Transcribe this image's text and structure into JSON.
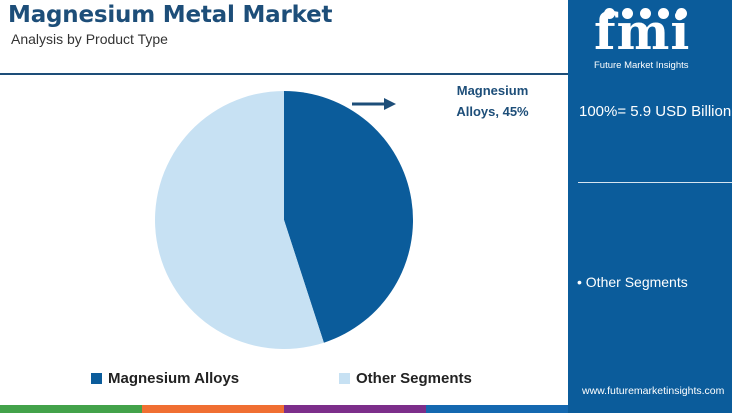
{
  "header": {
    "title": "Magnesium Metal Market",
    "subtitle": "Analysis by Product Type"
  },
  "colors": {
    "primary": "#0b5c9b",
    "light": "#c7e1f3",
    "title": "#1d4e79",
    "bottom_bar": [
      "#43a24a",
      "#f06f32",
      "#7c2e8a",
      "#1468b0"
    ]
  },
  "chart_data": {
    "type": "pie",
    "slices": [
      {
        "label": "Magnesium Alloys",
        "value": 45,
        "color": "#0b5c9b"
      },
      {
        "label": "Other Segments",
        "value": 55,
        "color": "#c7e1f3"
      }
    ],
    "callout": {
      "line1": "Magnesium",
      "line2": "Alloys, 45%"
    },
    "legend": [
      "Magnesium Alloys",
      "Other Segments"
    ],
    "legend_position": "bottom"
  },
  "sidebar": {
    "logo_text": "fmi",
    "logo_tagline": "Future Market Insights",
    "total": "100%= 5.9 USD Billion",
    "other_segments": "• Other Segments",
    "url": "www.futuremarketinsights.com"
  }
}
